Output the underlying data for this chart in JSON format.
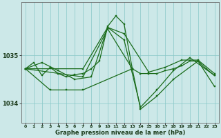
{
  "bg_color": "#cce8e8",
  "line_color": "#1a6b1a",
  "grid_color": "#88c8c8",
  "xlabel": "Graphe pression niveau de la mer (hPa)",
  "xlim": [
    -0.5,
    23.5
  ],
  "ylim": [
    1033.6,
    1036.1
  ],
  "yticks": [
    1034,
    1035
  ],
  "xticks": [
    0,
    1,
    2,
    3,
    4,
    5,
    6,
    7,
    8,
    9,
    10,
    11,
    12,
    13,
    14,
    15,
    16,
    17,
    18,
    19,
    20,
    21,
    22,
    23
  ],
  "series": [
    {
      "points": [
        [
          0,
          1034.72
        ],
        [
          1,
          1034.85
        ],
        [
          2,
          1034.58
        ],
        [
          3,
          1034.75
        ],
        [
          4,
          1034.62
        ],
        [
          5,
          1034.55
        ],
        [
          6,
          1034.6
        ],
        [
          7,
          1034.62
        ],
        [
          8,
          1034.72
        ],
        [
          9,
          1034.88
        ],
        [
          10,
          1035.6
        ],
        [
          11,
          1035.82
        ],
        [
          12,
          1035.65
        ],
        [
          13,
          1034.72
        ],
        [
          14,
          1034.62
        ],
        [
          15,
          1034.62
        ],
        [
          16,
          1034.62
        ],
        [
          17,
          1034.68
        ],
        [
          18,
          1034.72
        ],
        [
          19,
          1034.78
        ],
        [
          20,
          1034.88
        ],
        [
          21,
          1034.88
        ],
        [
          22,
          1034.72
        ],
        [
          23,
          1034.58
        ]
      ]
    },
    {
      "points": [
        [
          0,
          1034.72
        ],
        [
          3,
          1034.28
        ],
        [
          5,
          1034.28
        ],
        [
          7,
          1034.28
        ],
        [
          13,
          1034.72
        ]
      ]
    },
    {
      "points": [
        [
          0,
          1034.72
        ],
        [
          2,
          1034.85
        ],
        [
          4,
          1034.68
        ],
        [
          6,
          1034.5
        ],
        [
          8,
          1034.55
        ],
        [
          10,
          1035.58
        ],
        [
          12,
          1035.45
        ],
        [
          15,
          1034.65
        ],
        [
          17,
          1034.75
        ],
        [
          19,
          1034.9
        ],
        [
          21,
          1034.9
        ],
        [
          23,
          1034.62
        ]
      ]
    },
    {
      "points": [
        [
          0,
          1034.72
        ],
        [
          7,
          1034.72
        ],
        [
          10,
          1035.58
        ],
        [
          12,
          1035.32
        ],
        [
          14,
          1033.92
        ],
        [
          16,
          1034.28
        ],
        [
          18,
          1034.68
        ],
        [
          20,
          1034.95
        ],
        [
          23,
          1034.58
        ]
      ]
    },
    {
      "points": [
        [
          0,
          1034.72
        ],
        [
          7,
          1034.55
        ],
        [
          10,
          1035.55
        ],
        [
          13,
          1034.72
        ],
        [
          14,
          1033.88
        ],
        [
          16,
          1034.15
        ],
        [
          18,
          1034.5
        ],
        [
          21,
          1034.88
        ],
        [
          23,
          1034.35
        ]
      ]
    }
  ]
}
